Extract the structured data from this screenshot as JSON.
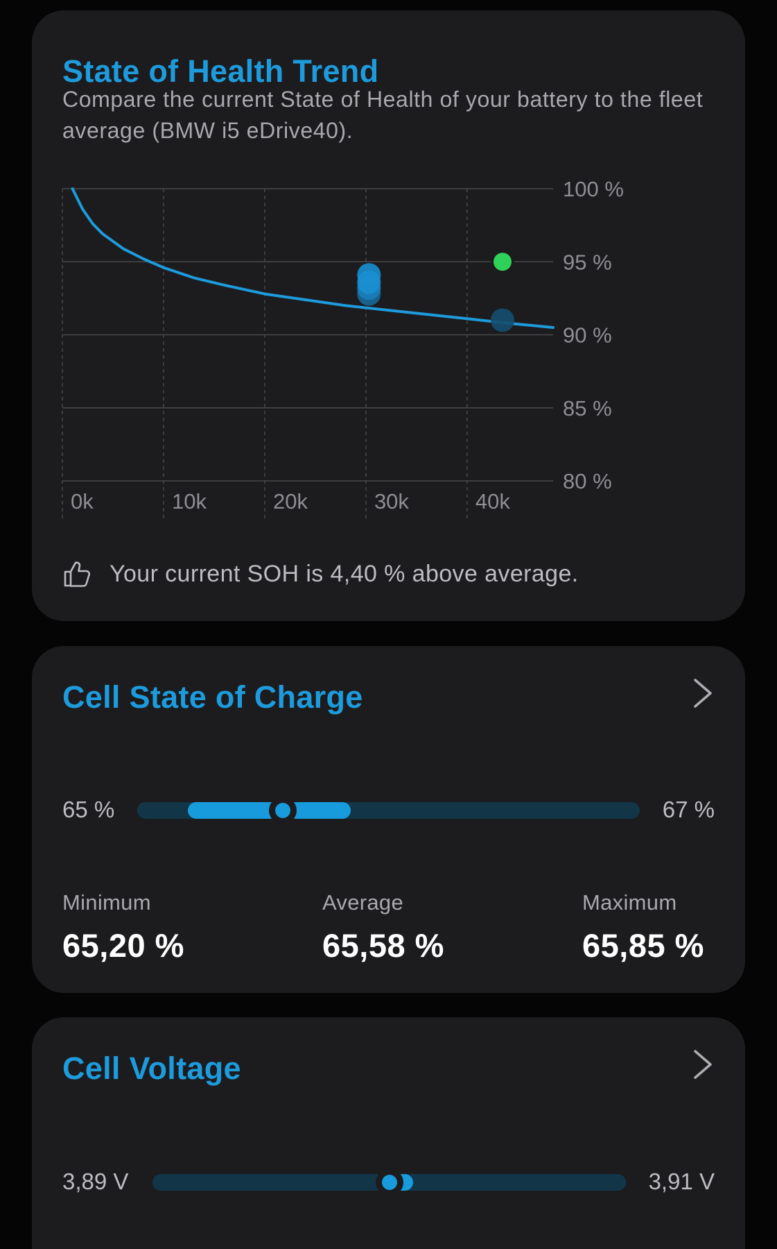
{
  "soh_card": {
    "title": "State of Health Trend",
    "description": "Compare the current State of Health of your battery to the fleet average (BMW i5 eDrive40).",
    "insight_text": "Your current SOH is 4,40 % above average.",
    "insight_icon": "thumbs-up-icon"
  },
  "chart_data": {
    "type": "line",
    "title": "",
    "xlabel": "",
    "ylabel": "",
    "x_tick_labels": [
      "0k",
      "10k",
      "20k",
      "30k",
      "40k"
    ],
    "x_ticks": [
      0,
      10000,
      20000,
      30000,
      40000
    ],
    "y_tick_labels": [
      "100 %",
      "95 %",
      "90 %",
      "85 %",
      "80 %"
    ],
    "y_ticks": [
      100,
      95,
      90,
      85,
      80
    ],
    "xlim": [
      0,
      48500
    ],
    "ylim": [
      80,
      100
    ],
    "grid": true,
    "series": [
      {
        "x": [
          1000,
          2000,
          3000,
          4000,
          6000,
          8000,
          10000,
          13000,
          16000,
          20000,
          24000,
          28000,
          32000,
          36000,
          40000,
          44000,
          48500
        ],
        "y": [
          100,
          98.6,
          97.6,
          96.9,
          95.9,
          95.2,
          94.6,
          93.9,
          93.4,
          92.8,
          92.4,
          92.0,
          91.7,
          91.4,
          91.1,
          90.8,
          90.5
        ],
        "color": "#1d9bdc"
      }
    ],
    "points": [
      {
        "x": 30300,
        "y": 94.1,
        "color": "#1a8fd0"
      },
      {
        "x": 30300,
        "y": 93.6,
        "color": "#1a8fd0"
      },
      {
        "x": 30300,
        "y": 93.2,
        "color": "#1a7fbd"
      },
      {
        "x": 30300,
        "y": 92.8,
        "color": "#17699a"
      },
      {
        "x": 43500,
        "y": 95.0,
        "color": "#30d158",
        "highlight": true
      },
      {
        "x": 43500,
        "y": 91.0,
        "color": "#164e6f"
      }
    ]
  },
  "soc_card": {
    "title": "Cell State of Charge",
    "chevron_icon": "chevron-right-icon",
    "range_min": "65 %",
    "range_max": "67 %",
    "range": {
      "min": 65,
      "max": 67,
      "low": 65.2,
      "avg": 65.58,
      "high": 65.85
    },
    "minimum_label": "Minimum",
    "minimum_value": "65,20 %",
    "average_label": "Average",
    "average_value": "65,58 %",
    "maximum_label": "Maximum",
    "maximum_value": "65,85 %"
  },
  "voltage_card": {
    "title": "Cell Voltage",
    "chevron_icon": "chevron-right-icon",
    "range_min": "3,89 V",
    "range_max": "3,91 V",
    "range": {
      "min": 3.89,
      "max": 3.91,
      "low": 3.8999,
      "avg": 3.9,
      "high": 3.901
    }
  },
  "colors": {
    "accent": "#1d9bdc",
    "card_background": "#1c1c1e",
    "track": "#123648",
    "highlight_point": "#30d158"
  }
}
